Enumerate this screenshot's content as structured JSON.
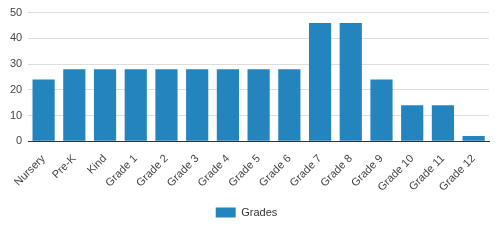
{
  "chart_data": {
    "type": "bar",
    "categories": [
      "Nursery",
      "Pre-K",
      "Kind",
      "Grade 1",
      "Grade 2",
      "Grade 3",
      "Grade 4",
      "Grade 5",
      "Grade 6",
      "Grade 7",
      "Grade 8",
      "Grade 9",
      "Grade 10",
      "Grade 11",
      "Grade 12"
    ],
    "series": [
      {
        "name": "Grades",
        "color": "#2485be",
        "values": [
          24,
          28,
          28,
          28,
          28,
          28,
          28,
          28,
          28,
          46,
          46,
          24,
          14,
          14,
          2
        ]
      }
    ],
    "ylim": [
      0,
      50
    ],
    "yticks": [
      0,
      10,
      20,
      30,
      40,
      50
    ],
    "grid": true,
    "legend": "bottom"
  }
}
